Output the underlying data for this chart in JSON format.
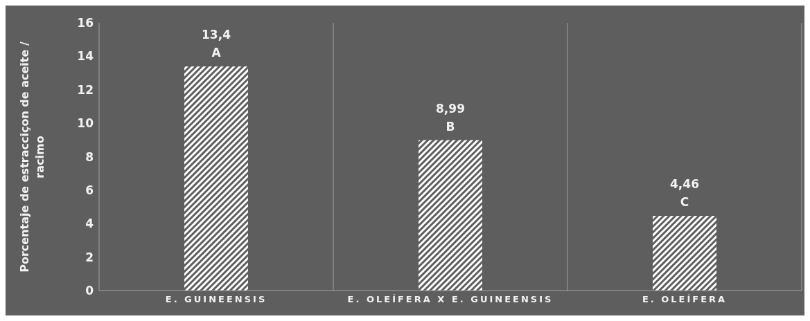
{
  "chart_data": {
    "type": "bar",
    "ylabel": "Porcentaje de estracciçon de  aceite / racimo",
    "categories": [
      "E. GUINEENSIS",
      "E. OLEÍFERA X E. GUINEENSIS",
      "E. OLEÍFERA"
    ],
    "values": [
      13.4,
      8.99,
      4.46
    ],
    "color": "#ffffff",
    "value_labels": [
      "13,4",
      "8,99",
      "4,46"
    ],
    "annotations": [
      {
        "text": "A",
        "x": "E. GUINEENSIS",
        "y": 13.4
      },
      {
        "text": "B",
        "x": "E. OLEÍFERA X E. GUINEENSIS",
        "y": 8.99
      },
      {
        "text": "C",
        "x": "E. OLEÍFERA",
        "y": 4.46
      }
    ],
    "ylim": [
      0,
      16
    ],
    "yticks": [
      0,
      2,
      4,
      6,
      8,
      10,
      12,
      14,
      16
    ],
    "legend": false
  }
}
